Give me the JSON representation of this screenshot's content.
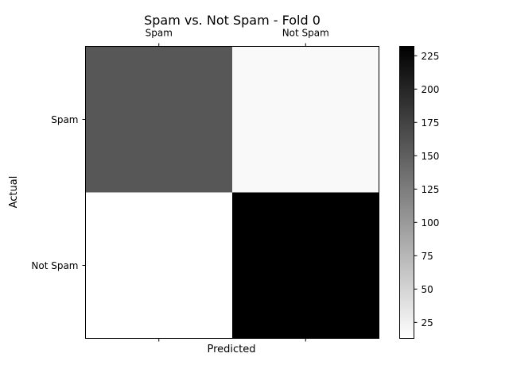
{
  "chart_data": {
    "type": "heatmap",
    "title": "Spam vs. Not Spam - Fold 0",
    "xlabel": "Predicted",
    "ylabel": "Actual",
    "x_categories": [
      "Spam",
      "Not Spam"
    ],
    "y_categories": [
      "Spam",
      "Not Spam"
    ],
    "values": [
      [
        157,
        18
      ],
      [
        13,
        232
      ]
    ],
    "colormap": "gray_r",
    "color_min": 13,
    "color_max": 232,
    "colorbar_ticks": [
      25,
      50,
      75,
      100,
      125,
      150,
      175,
      200,
      225
    ],
    "x_tick_position": "top",
    "grid": false
  }
}
